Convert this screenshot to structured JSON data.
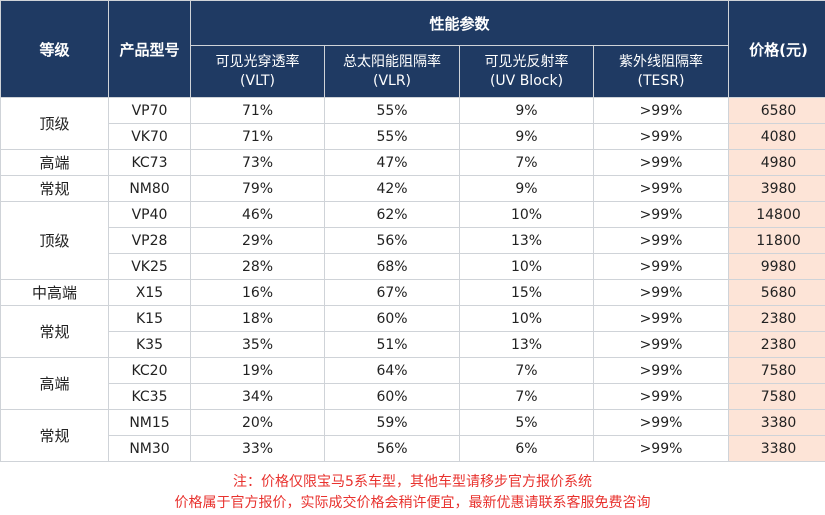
{
  "header": {
    "grade": "等级",
    "model": "产品型号",
    "performance": "性能参数",
    "price": "价格(元)",
    "columns": [
      {
        "line1": "可见光穿透率",
        "line2": "(VLT)"
      },
      {
        "line1": "总太阳能阻隔率",
        "line2": "(VLR)"
      },
      {
        "line1": "可见光反射率",
        "line2": "(UV Block)"
      },
      {
        "line1": "紫外线阻隔率",
        "line2": "(TESR)"
      }
    ]
  },
  "groups": [
    {
      "grade": "顶级",
      "rows": [
        {
          "model": "VP70",
          "vlt": "71%",
          "vlr": "55%",
          "uv": "9%",
          "tesr": ">99%",
          "price": "6580"
        },
        {
          "model": "VK70",
          "vlt": "71%",
          "vlr": "55%",
          "uv": "9%",
          "tesr": ">99%",
          "price": "4080"
        }
      ]
    },
    {
      "grade": "高端",
      "rows": [
        {
          "model": "KC73",
          "vlt": "73%",
          "vlr": "47%",
          "uv": "7%",
          "tesr": ">99%",
          "price": "4980"
        }
      ]
    },
    {
      "grade": "常规",
      "rows": [
        {
          "model": "NM80",
          "vlt": "79%",
          "vlr": "42%",
          "uv": "9%",
          "tesr": ">99%",
          "price": "3980"
        }
      ]
    },
    {
      "grade": "顶级",
      "rows": [
        {
          "model": "VP40",
          "vlt": "46%",
          "vlr": "62%",
          "uv": "10%",
          "tesr": ">99%",
          "price": "14800"
        },
        {
          "model": "VP28",
          "vlt": "29%",
          "vlr": "56%",
          "uv": "13%",
          "tesr": ">99%",
          "price": "11800"
        },
        {
          "model": "VK25",
          "vlt": "28%",
          "vlr": "68%",
          "uv": "10%",
          "tesr": ">99%",
          "price": "9980"
        }
      ]
    },
    {
      "grade": "中高端",
      "rows": [
        {
          "model": "X15",
          "vlt": "16%",
          "vlr": "67%",
          "uv": "15%",
          "tesr": ">99%",
          "price": "5680"
        }
      ]
    },
    {
      "grade": "常规",
      "rows": [
        {
          "model": "K15",
          "vlt": "18%",
          "vlr": "60%",
          "uv": "10%",
          "tesr": ">99%",
          "price": "2380"
        },
        {
          "model": "K35",
          "vlt": "35%",
          "vlr": "51%",
          "uv": "13%",
          "tesr": ">99%",
          "price": "2380"
        }
      ]
    },
    {
      "grade": "高端",
      "rows": [
        {
          "model": "KC20",
          "vlt": "19%",
          "vlr": "64%",
          "uv": "7%",
          "tesr": ">99%",
          "price": "7580"
        },
        {
          "model": "KC35",
          "vlt": "34%",
          "vlr": "60%",
          "uv": "7%",
          "tesr": ">99%",
          "price": "7580"
        }
      ]
    },
    {
      "grade": "常规",
      "rows": [
        {
          "model": "NM15",
          "vlt": "20%",
          "vlr": "59%",
          "uv": "5%",
          "tesr": ">99%",
          "price": "3380"
        },
        {
          "model": "NM30",
          "vlt": "33%",
          "vlr": "56%",
          "uv": "6%",
          "tesr": ">99%",
          "price": "3380"
        }
      ]
    }
  ],
  "notes": {
    "line1": "注：价格仅限宝马5系车型，其他车型请移步官方报价系统",
    "line2": "价格属于官方报价，实际成交价格会稍许便宜，最新优惠请联系客服免费咨询"
  },
  "colors": {
    "header_bg": "#1f3a63",
    "grade_text": "#e07a1f",
    "price_bg": "#fde4d7",
    "price_text": "#e8322e"
  }
}
